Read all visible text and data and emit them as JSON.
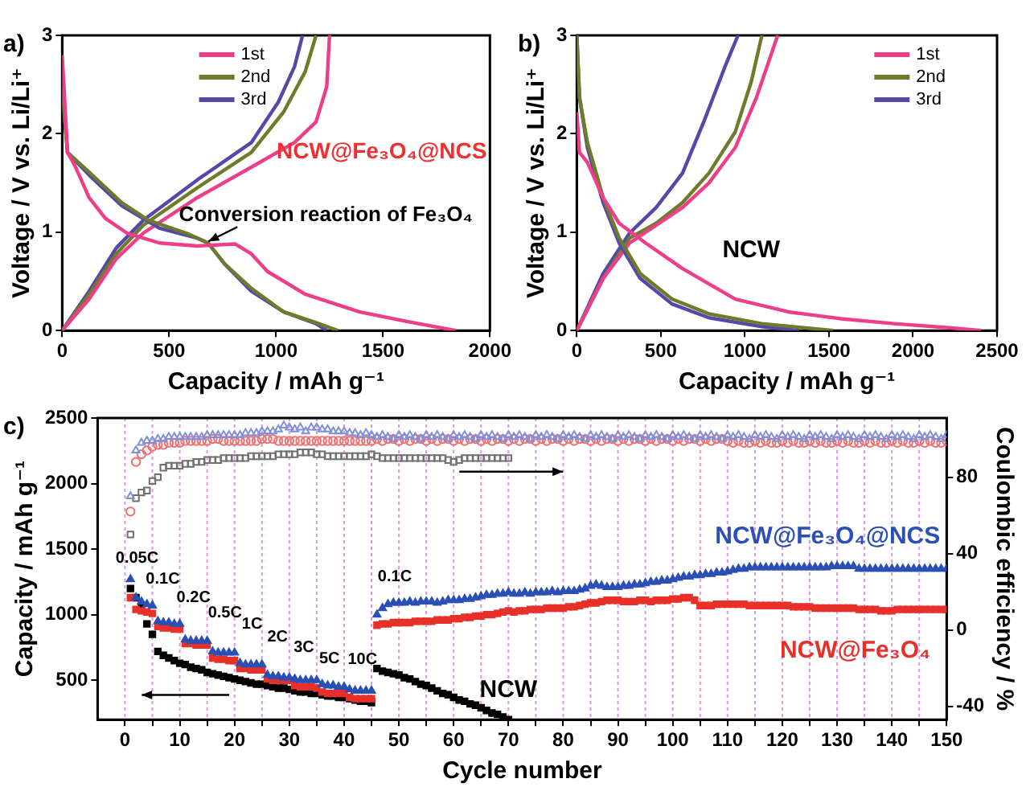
{
  "chart_data": [
    {
      "type": "line",
      "annotations": [
        "a)",
        "NCW@Fe₃O₄@NCS",
        {
          "text": "Conversion reaction of Fe₃O₄",
          "x": 669,
          "y": 0.89
        }
      ],
      "xlabel": "Capacity / mAh g⁻¹",
      "ylabel": "Voltage / V vs. Li/Li⁺",
      "xlim": [
        0,
        2000
      ],
      "xticks": [
        0,
        500,
        1000,
        1500,
        2000
      ],
      "ylim": [
        0,
        3
      ],
      "yticks": [
        0,
        1,
        2,
        3
      ],
      "legend": "top",
      "marker": "none",
      "line_style": "solid",
      "series": [
        {
          "name": "1st",
          "color": "#ee3e8a",
          "x": [
            0,
            25,
            63,
            126,
            202,
            303,
            455,
            631,
            808,
            884,
            960,
            1136,
            1389,
            1641,
            1840
          ],
          "values": [
            2.8,
            1.81,
            1.66,
            1.35,
            1.14,
            0.99,
            0.89,
            0.86,
            0.88,
            0.78,
            0.6,
            0.37,
            0.19,
            0.08,
            0
          ]
        },
        {
          "name": "2nd",
          "color": "#6e7b2b",
          "x": [
            0,
            25,
            126,
            278,
            404,
            580,
            682,
            758,
            884,
            1035,
            1187,
            1290
          ],
          "values": [
            2.48,
            1.81,
            1.61,
            1.3,
            1.12,
            0.99,
            0.89,
            0.68,
            0.43,
            0.19,
            0.08,
            0
          ]
        },
        {
          "name": "3rd",
          "color": "#5648a8",
          "x": [
            0,
            25,
            126,
            278,
            455,
            631,
            682,
            758,
            884,
            1035,
            1187,
            1237
          ],
          "values": [
            2.43,
            1.81,
            1.58,
            1.27,
            1.04,
            0.94,
            0.89,
            0.68,
            0.4,
            0.19,
            0.07,
            0
          ]
        },
        {
          "color": "#ee3e8a",
          "x": [
            0,
            126,
            253,
            379,
            631,
            884,
            1086,
            1187,
            1237,
            1250
          ],
          "values": [
            0,
            0.32,
            0.73,
            0.99,
            1.35,
            1.66,
            1.91,
            2.12,
            2.48,
            3
          ]
        },
        {
          "color": "#6e7b2b",
          "x": [
            0,
            126,
            253,
            379,
            631,
            884,
            1035,
            1136,
            1187
          ],
          "values": [
            0,
            0.37,
            0.78,
            1.07,
            1.45,
            1.81,
            2.22,
            2.63,
            3
          ]
        },
        {
          "color": "#5648a8",
          "x": [
            0,
            126,
            253,
            379,
            631,
            884,
            1010,
            1086,
            1124
          ],
          "values": [
            0,
            0.4,
            0.84,
            1.12,
            1.53,
            1.91,
            2.32,
            2.68,
            3
          ]
        }
      ]
    },
    {
      "type": "line",
      "annotations": [
        "b)",
        "NCW"
      ],
      "xlabel": "Capacity / mAh g⁻¹",
      "ylabel": "Voltage / V vs. Li/Li⁺",
      "xlim": [
        0,
        2500
      ],
      "xticks": [
        0,
        500,
        1000,
        1500,
        2000,
        2500
      ],
      "ylim": [
        0,
        3
      ],
      "yticks": [
        0,
        1,
        2,
        3
      ],
      "legend": "top right",
      "marker": "none",
      "line_style": "solid",
      "series": [
        {
          "name": "1st",
          "color": "#ee3e8a",
          "x": [
            0,
            16,
            63,
            157,
            252,
            409,
            629,
            943,
            1258,
            1572,
            1887,
            2201,
            2406
          ],
          "values": [
            2.22,
            1.81,
            1.71,
            1.35,
            1.09,
            0.89,
            0.63,
            0.32,
            0.19,
            0.12,
            0.07,
            0.03,
            0
          ]
        },
        {
          "name": "2nd",
          "color": "#6e7b2b",
          "x": [
            0,
            16,
            63,
            157,
            252,
            377,
            566,
            786,
            1101,
            1525
          ],
          "values": [
            3,
            2.37,
            1.91,
            1.35,
            0.94,
            0.58,
            0.32,
            0.17,
            0.07,
            0
          ]
        },
        {
          "name": "3rd",
          "color": "#5648a8",
          "x": [
            0,
            16,
            63,
            157,
            252,
            377,
            566,
            786,
            1101,
            1321
          ],
          "values": [
            3,
            2.37,
            1.86,
            1.3,
            0.89,
            0.53,
            0.27,
            0.13,
            0.04,
            0
          ]
        },
        {
          "color": "#ee3e8a",
          "x": [
            0,
            157,
            314,
            472,
            629,
            786,
            943,
            1069,
            1195
          ],
          "values": [
            0,
            0.53,
            0.89,
            1.07,
            1.25,
            1.5,
            1.86,
            2.37,
            3
          ]
        },
        {
          "color": "#6e7b2b",
          "x": [
            0,
            157,
            314,
            472,
            629,
            786,
            943,
            1038,
            1101
          ],
          "values": [
            0,
            0.53,
            0.94,
            1.09,
            1.3,
            1.6,
            2.02,
            2.53,
            3
          ]
        },
        {
          "color": "#5648a8",
          "x": [
            0,
            157,
            314,
            472,
            629,
            755,
            881,
            959
          ],
          "values": [
            0,
            0.58,
            0.99,
            1.25,
            1.6,
            2.12,
            2.68,
            3
          ]
        }
      ]
    },
    {
      "type": "scatter",
      "annotations": [
        "c)",
        "0.05C",
        "0.1C",
        "0.2C",
        "0.5C",
        "1C",
        "2C",
        "3C",
        "5C",
        "10C",
        "0.1C"
      ],
      "xlabel": "Cycle number",
      "ylabel": "Capacity / mAh g⁻¹",
      "y2label": "Coulombic efficiency / %",
      "xlim": [
        -5,
        150
      ],
      "xticks": [
        0,
        {
          "value": 5,
          "label": null
        },
        10,
        {
          "value": 15,
          "label": null
        },
        20,
        {
          "value": 25,
          "label": null
        },
        30,
        {
          "value": 35,
          "label": null
        },
        40,
        {
          "value": 45,
          "label": null
        },
        50,
        {
          "value": 55,
          "label": null
        },
        60,
        {
          "value": 65,
          "label": null
        },
        70,
        {
          "value": 75,
          "label": null
        },
        80,
        {
          "value": 85,
          "label": null
        },
        90,
        {
          "value": 95,
          "label": null
        },
        100,
        {
          "value": 105,
          "label": null
        },
        110,
        {
          "value": 115,
          "label": null
        },
        120,
        {
          "value": 125,
          "label": null
        },
        130,
        {
          "value": 135,
          "label": null
        },
        140,
        {
          "value": 145,
          "label": null
        },
        150
      ],
      "ylim": [
        200,
        2500
      ],
      "yticks": [
        500,
        1000,
        1500,
        2000,
        2500
      ],
      "y2lim": [
        -47,
        111
      ],
      "y2ticks": [
        -40,
        0,
        40,
        80
      ],
      "grid": "x",
      "line_style": "solid",
      "x": [
        1,
        2,
        3,
        4,
        5,
        6,
        7,
        8,
        9,
        10,
        11,
        12,
        13,
        14,
        15,
        16,
        17,
        18,
        19,
        20,
        21,
        22,
        23,
        24,
        25,
        26,
        27,
        28,
        29,
        30,
        31,
        32,
        33,
        34,
        35,
        36,
        37,
        38,
        39,
        40,
        41,
        42,
        43,
        44,
        45,
        46,
        47,
        48,
        49,
        50,
        51,
        52,
        53,
        54,
        55,
        56,
        57,
        58,
        59,
        60,
        61,
        62,
        63,
        64,
        65,
        66,
        67,
        68,
        69,
        70,
        71,
        72,
        73,
        74,
        75,
        76,
        77,
        78,
        79,
        80,
        81,
        82,
        83,
        84,
        85,
        86,
        87,
        88,
        89,
        90,
        91,
        92,
        93,
        94,
        95,
        96,
        97,
        98,
        99,
        100,
        101,
        102,
        103,
        104,
        105,
        106,
        107,
        108,
        109,
        110,
        111,
        112,
        113,
        114,
        115,
        116,
        117,
        118,
        119,
        120,
        121,
        122,
        123,
        124,
        125,
        126,
        127,
        128,
        129,
        130,
        131,
        132,
        133,
        134,
        135,
        136,
        137,
        138,
        139,
        140,
        141,
        142,
        143,
        144,
        145,
        146,
        147,
        148,
        149,
        150
      ],
      "series": [
        {
          "name": "NCW@Fe₃O₄@NCS",
          "color": "#2a4fb5",
          "marker": "triangle",
          "values": [
            1270,
            1130,
            1100,
            1080,
            1070,
            950,
            940,
            940,
            930,
            930,
            810,
            800,
            800,
            800,
            800,
            720,
            710,
            710,
            710,
            710,
            630,
            620,
            620,
            620,
            620,
            540,
            530,
            530,
            520,
            520,
            510,
            500,
            500,
            500,
            500,
            470,
            460,
            460,
            450,
            450,
            430,
            420,
            420,
            420,
            420,
            1000,
            1050,
            1080,
            1090,
            1090,
            1090,
            1100,
            1090,
            1100,
            1100,
            1100,
            1090,
            1100,
            1110,
            1110,
            1110,
            1120,
            1120,
            1130,
            1140,
            1150,
            1150,
            1160,
            1160,
            1170,
            1160,
            1160,
            1170,
            1160,
            1170,
            1170,
            1170,
            1180,
            1170,
            1180,
            1180,
            1180,
            1190,
            1200,
            1220,
            1230,
            1220,
            1210,
            1210,
            1210,
            1220,
            1220,
            1230,
            1230,
            1240,
            1250,
            1250,
            1260,
            1260,
            1270,
            1280,
            1290,
            1290,
            1300,
            1300,
            1310,
            1310,
            1320,
            1320,
            1330,
            1340,
            1350,
            1350,
            1360,
            1360,
            1360,
            1360,
            1360,
            1360,
            1360,
            1360,
            1360,
            1360,
            1360,
            1360,
            1360,
            1360,
            1360,
            1370,
            1370,
            1370,
            1370,
            1370,
            1350,
            1350,
            1350,
            1350,
            1350,
            1350,
            1350,
            1350,
            1350,
            1350,
            1350,
            1350,
            1350,
            1350,
            1350,
            1350,
            1350
          ]
        },
        {
          "name": "NCW@Fe₃O₄",
          "color": "#e8302a",
          "marker": "square",
          "values": [
            1130,
            1040,
            1030,
            1020,
            1010,
            910,
            900,
            900,
            890,
            890,
            780,
            780,
            770,
            770,
            770,
            670,
            660,
            660,
            650,
            650,
            590,
            590,
            580,
            580,
            580,
            510,
            500,
            500,
            500,
            500,
            460,
            450,
            450,
            450,
            440,
            410,
            400,
            400,
            400,
            400,
            370,
            360,
            360,
            360,
            360,
            920,
            930,
            930,
            940,
            940,
            940,
            940,
            950,
            950,
            950,
            950,
            960,
            960,
            960,
            970,
            970,
            980,
            980,
            990,
            990,
            1000,
            1000,
            1010,
            1020,
            1030,
            1020,
            1030,
            1030,
            1040,
            1040,
            1040,
            1050,
            1050,
            1050,
            1050,
            1060,
            1060,
            1070,
            1080,
            1090,
            1090,
            1100,
            1110,
            1110,
            1110,
            1100,
            1100,
            1100,
            1110,
            1110,
            1100,
            1110,
            1110,
            1110,
            1120,
            1120,
            1130,
            1130,
            1110,
            1070,
            1070,
            1070,
            1080,
            1080,
            1080,
            1080,
            1080,
            1080,
            1070,
            1070,
            1070,
            1070,
            1070,
            1070,
            1070,
            1070,
            1060,
            1060,
            1060,
            1060,
            1050,
            1050,
            1050,
            1050,
            1050,
            1050,
            1050,
            1050,
            1040,
            1040,
            1040,
            1040,
            1030,
            1030,
            1030,
            1040,
            1040,
            1040,
            1040,
            1040,
            1040,
            1040,
            1040,
            1040,
            1040
          ]
        },
        {
          "name": "NCW",
          "color": "#000000",
          "marker": "square",
          "x": [
            1,
            2,
            3,
            4,
            5,
            6,
            7,
            8,
            9,
            10,
            11,
            12,
            13,
            14,
            15,
            16,
            17,
            18,
            19,
            20,
            21,
            22,
            23,
            24,
            25,
            26,
            27,
            28,
            29,
            30,
            31,
            32,
            33,
            34,
            35,
            36,
            37,
            38,
            39,
            40,
            41,
            42,
            43,
            44,
            45,
            46,
            47,
            48,
            49,
            50,
            51,
            52,
            53,
            54,
            55,
            56,
            57,
            58,
            59,
            60,
            61,
            62,
            63,
            64,
            65,
            66,
            67,
            68,
            69,
            70
          ],
          "values": [
            1200,
            1130,
            1050,
            930,
            850,
            720,
            690,
            670,
            650,
            630,
            620,
            600,
            590,
            580,
            560,
            550,
            540,
            530,
            520,
            510,
            500,
            490,
            480,
            470,
            470,
            460,
            450,
            440,
            440,
            430,
            420,
            410,
            410,
            400,
            400,
            390,
            380,
            380,
            370,
            370,
            360,
            350,
            340,
            340,
            330,
            590,
            570,
            560,
            550,
            540,
            520,
            510,
            490,
            470,
            460,
            440,
            420,
            400,
            390,
            370,
            350,
            340,
            320,
            310,
            290,
            270,
            250,
            240,
            220,
            200
          ]
        },
        {
          "color": "#7f8fd8",
          "marker": "triangle",
          "axis": "y2",
          "values": [
            70,
            94,
            98,
            99,
            99,
            100,
            100,
            101,
            101,
            101,
            101,
            101,
            101,
            101,
            102,
            102,
            102,
            102,
            102,
            102,
            102,
            103,
            103,
            103,
            104,
            104,
            104,
            105,
            107,
            106,
            105,
            106,
            104,
            106,
            106,
            105,
            105,
            104,
            104,
            104,
            103,
            103,
            102,
            103,
            102,
            101,
            102,
            101,
            100,
            102,
            101,
            102,
            101,
            100,
            102,
            101,
            102,
            101,
            100,
            102,
            101,
            102,
            101,
            100,
            102,
            101,
            102,
            101,
            100,
            102,
            101,
            102,
            101,
            100,
            102,
            101,
            102,
            101,
            100,
            102,
            101,
            102,
            101,
            100,
            102,
            101,
            102,
            101,
            100,
            102,
            101,
            102,
            101,
            100,
            102,
            101,
            102,
            101,
            100,
            102,
            101,
            102,
            101,
            100,
            102,
            101,
            102,
            101,
            100,
            102,
            101,
            102,
            101,
            100,
            102,
            101,
            102,
            101,
            100,
            102,
            101,
            102,
            101,
            100,
            102,
            101,
            102,
            101,
            100,
            102,
            101,
            102,
            101,
            100,
            102,
            101,
            102,
            101,
            100,
            102,
            101,
            102,
            101,
            100,
            102,
            101,
            102,
            101,
            100,
            102
          ]
        },
        {
          "color": "#f07070",
          "marker": "circle",
          "axis": "y2",
          "values": [
            62,
            88,
            92,
            94,
            96,
            97,
            97,
            98,
            98,
            98,
            99,
            99,
            99,
            99,
            99,
            100,
            100,
            99,
            99,
            99,
            99,
            99,
            99,
            99,
            100,
            100,
            100,
            99,
            99,
            99,
            99,
            99,
            99,
            99,
            99,
            99,
            99,
            99,
            99,
            99,
            99,
            99,
            99,
            99,
            99,
            100,
            99,
            100,
            100,
            99,
            100,
            99,
            100,
            100,
            99,
            100,
            99,
            100,
            100,
            99,
            100,
            99,
            100,
            100,
            99,
            100,
            99,
            100,
            100,
            99,
            100,
            99,
            100,
            100,
            99,
            100,
            99,
            100,
            100,
            99,
            100,
            99,
            100,
            100,
            99,
            100,
            99,
            100,
            100,
            99,
            100,
            99,
            100,
            100,
            99,
            100,
            99,
            100,
            100,
            99,
            100,
            99,
            100,
            100,
            99,
            100,
            99,
            100,
            100,
            99,
            98,
            99,
            98,
            98,
            99,
            98,
            99,
            98,
            98,
            99,
            98,
            99,
            98,
            98,
            99,
            98,
            99,
            98,
            98,
            99,
            98,
            99,
            98,
            98,
            99,
            98,
            99,
            98,
            98,
            99,
            98,
            99,
            98,
            98,
            99,
            98,
            99,
            98,
            98,
            99
          ]
        },
        {
          "color": "#707070",
          "marker": "square",
          "axis": "y2",
          "x": [
            1,
            2,
            3,
            4,
            5,
            6,
            7,
            8,
            9,
            10,
            11,
            12,
            13,
            14,
            15,
            16,
            17,
            18,
            19,
            20,
            21,
            22,
            23,
            24,
            25,
            26,
            27,
            28,
            29,
            30,
            31,
            32,
            33,
            34,
            35,
            36,
            37,
            38,
            39,
            40,
            41,
            42,
            43,
            44,
            45,
            46,
            47,
            48,
            49,
            50,
            51,
            52,
            53,
            54,
            55,
            56,
            57,
            58,
            59,
            60,
            61,
            62,
            63,
            64,
            65,
            66,
            67,
            68,
            69,
            70
          ],
          "values": [
            50,
            69,
            72,
            73,
            78,
            80,
            85,
            86,
            86,
            86,
            87,
            87,
            88,
            88,
            89,
            89,
            89,
            90,
            90,
            90,
            90,
            90,
            91,
            91,
            91,
            91,
            91,
            92,
            92,
            92,
            92,
            93,
            93,
            93,
            92,
            92,
            91,
            91,
            91,
            91,
            91,
            91,
            91,
            91,
            92,
            91,
            90,
            90,
            90,
            90,
            90,
            90,
            90,
            90,
            90,
            90,
            90,
            90,
            89,
            88,
            89,
            90,
            90,
            90,
            90,
            90,
            90,
            90,
            90,
            90
          ]
        }
      ]
    }
  ]
}
